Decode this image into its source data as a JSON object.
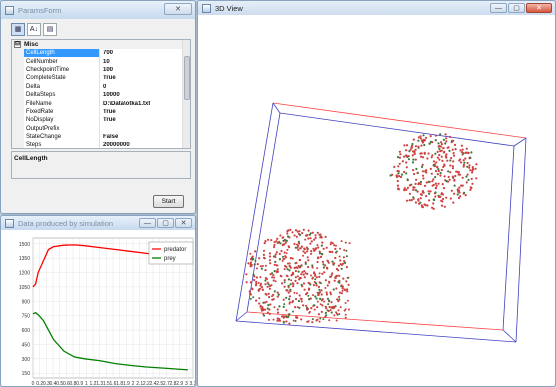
{
  "params_window": {
    "title": "ParamsForm",
    "close_label": "✕",
    "toolbar": {
      "categorized_label": "▦",
      "alphabetical_label": "A↓",
      "pages_label": "▤"
    },
    "category": {
      "toggle": "⊟",
      "name": "Misc"
    },
    "properties": [
      {
        "name": "CellLength",
        "value": "700"
      },
      {
        "name": "CellNumber",
        "value": "10"
      },
      {
        "name": "CheckpointTime",
        "value": "100"
      },
      {
        "name": "CompleteState",
        "value": "True"
      },
      {
        "name": "Delta",
        "value": "0"
      },
      {
        "name": "DeltaSteps",
        "value": "10000"
      },
      {
        "name": "FileName",
        "value": "D:\\Data\\otka1.txt"
      },
      {
        "name": "FixedRate",
        "value": "True"
      },
      {
        "name": "NoDisplay",
        "value": "True"
      },
      {
        "name": "OutputPrefix",
        "value": ""
      },
      {
        "name": "StateChange",
        "value": "False"
      },
      {
        "name": "Steps",
        "value": "20000000"
      }
    ],
    "description_title": "CellLength",
    "start_label": "Start"
  },
  "chart_window": {
    "title": "Data produced by simulation",
    "minimize_label": "—",
    "maximize_label": "▢",
    "close_label": "✕"
  },
  "chart_data": {
    "type": "line",
    "x": [
      0.0,
      0.05,
      0.1,
      0.2,
      0.3,
      0.4,
      0.6,
      0.8,
      1.0,
      1.3,
      1.6,
      1.9,
      2.2,
      2.6,
      3.0
    ],
    "xtick_labels": [
      "0",
      "0.2",
      "0.3",
      "0.4",
      "0.5",
      "0.6",
      "0.8",
      "0.9",
      "1",
      "1.2",
      "1.3",
      "1.5",
      "1.6",
      "1.8",
      "1.9",
      "2",
      "2.1",
      "2.2",
      "2.4",
      "2.5",
      "2.7",
      "2.8",
      "2.9",
      "3",
      "3.1"
    ],
    "series": [
      {
        "name": "predator",
        "color": "#ff0000",
        "values": [
          1050,
          1080,
          1200,
          1320,
          1440,
          1470,
          1485,
          1488,
          1480,
          1460,
          1440,
          1420,
          1400,
          1370,
          1340
        ]
      },
      {
        "name": "prey",
        "color": "#008000",
        "values": [
          770,
          780,
          760,
          700,
          600,
          500,
          380,
          320,
          300,
          280,
          250,
          230,
          215,
          200,
          185
        ]
      }
    ],
    "yticks": [
      150,
      300,
      450,
      600,
      750,
      900,
      1050,
      1200,
      1350,
      1500
    ],
    "ylim": [
      100,
      1560
    ],
    "xlim": [
      0,
      3.1
    ],
    "grid": true,
    "legend": "top-right"
  },
  "view_window": {
    "title": "3D View",
    "minimize_label": "—",
    "maximize_label": "▢",
    "close_label": "✕",
    "box_color_blue": "#4040c0",
    "box_color_red": "#ff4040",
    "particle_red": "#d04040",
    "particle_green": "#3a7a3a"
  }
}
